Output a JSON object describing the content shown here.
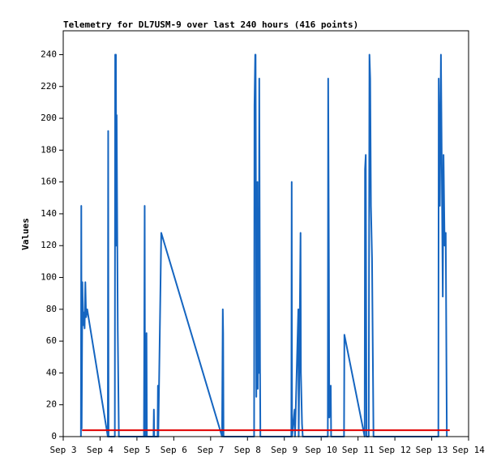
{
  "chart_data": {
    "type": "line",
    "title": "Telemetry for DL7USM-9 over last 240 hours (416 points)",
    "y_label": "Values",
    "xlim": [
      3,
      14
    ],
    "xticks": [
      {
        "value": 3,
        "label": "Sep 3"
      },
      {
        "value": 4,
        "label": "Sep 4"
      },
      {
        "value": 5,
        "label": "Sep 5"
      },
      {
        "value": 6,
        "label": "Sep 6"
      },
      {
        "value": 7,
        "label": "Sep 7"
      },
      {
        "value": 8,
        "label": "Sep 8"
      },
      {
        "value": 9,
        "label": "Sep 9"
      },
      {
        "value": 10,
        "label": "Sep 10"
      },
      {
        "value": 11,
        "label": "Sep 11"
      },
      {
        "value": 12,
        "label": "Sep 12"
      },
      {
        "value": 13,
        "label": "Sep 13"
      },
      {
        "value": 14,
        "label": "Sep 14"
      }
    ],
    "ylim": [
      0,
      255
    ],
    "yticks": [
      0,
      20,
      40,
      60,
      80,
      100,
      120,
      140,
      160,
      180,
      200,
      220,
      240
    ],
    "series": [
      {
        "color": "#1565c0",
        "x": [
          3.48,
          3.49,
          3.5,
          3.52,
          3.54,
          3.56,
          3.58,
          3.6,
          3.62,
          3.65,
          4.21,
          4.22,
          4.23,
          4.4,
          4.41,
          4.43,
          4.44,
          4.45,
          4.46,
          4.47,
          4.48,
          4.5,
          4.51,
          5.19,
          5.2,
          5.21,
          5.22,
          5.25,
          5.26,
          5.27,
          5.45,
          5.46,
          5.47,
          5.56,
          5.57,
          5.58,
          5.66,
          7.31,
          7.33,
          7.34,
          7.35,
          8.18,
          8.19,
          8.21,
          8.22,
          8.23,
          8.24,
          8.25,
          8.26,
          8.27,
          8.28,
          8.29,
          8.31,
          8.32,
          8.34,
          8.35,
          9.19,
          9.2,
          9.21,
          9.28,
          9.29,
          9.38,
          9.39,
          9.44,
          9.45,
          9.48,
          9.5,
          10.18,
          10.19,
          10.21,
          10.22,
          10.26,
          10.27,
          10.62,
          10.63,
          11.18,
          11.19,
          11.21,
          11.23,
          11.29,
          11.31,
          11.33,
          11.35,
          11.38,
          11.42,
          13.18,
          13.19,
          13.22,
          13.25,
          13.3,
          13.32,
          13.35,
          13.38,
          13.41
        ],
        "values": [
          0,
          145,
          5,
          97,
          70,
          78,
          68,
          97,
          75,
          80,
          0,
          192,
          0,
          0,
          240,
          240,
          120,
          202,
          155,
          112,
          67,
          22,
          0,
          0,
          65,
          145,
          0,
          0,
          65,
          0,
          0,
          17,
          0,
          0,
          32,
          0,
          128,
          0,
          80,
          65,
          0,
          0,
          208,
          240,
          240,
          145,
          25,
          120,
          72,
          160,
          30,
          140,
          40,
          225,
          48,
          0,
          0,
          160,
          0,
          17,
          0,
          80,
          0,
          128,
          40,
          8,
          0,
          0,
          225,
          105,
          12,
          32,
          0,
          0,
          64,
          0,
          168,
          177,
          0,
          0,
          240,
          225,
          145,
          112,
          0,
          0,
          225,
          145,
          240,
          88,
          177,
          120,
          128,
          0
        ]
      },
      {
        "color": "#e00000",
        "x": [
          3.51,
          13.49
        ],
        "values": [
          4,
          4
        ]
      }
    ]
  }
}
